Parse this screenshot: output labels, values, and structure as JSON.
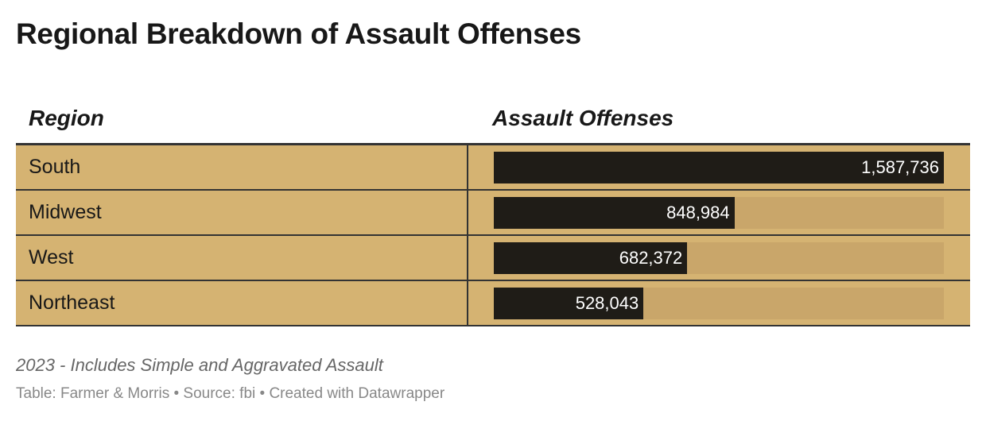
{
  "title": "Regional Breakdown of Assault Offenses",
  "chart_data": {
    "type": "table",
    "columns": [
      "Region",
      "Assault Offenses"
    ],
    "rows": [
      {
        "region": "South",
        "value": 1587736,
        "label": "1,587,736"
      },
      {
        "region": "Midwest",
        "value": 848984,
        "label": "848,984"
      },
      {
        "region": "West",
        "value": 682372,
        "label": "682,372"
      },
      {
        "region": "Northeast",
        "value": 528043,
        "label": "528,043"
      }
    ],
    "bar_max": 1587736,
    "colors": {
      "background": "#d5b372",
      "bar": "#1f1c17",
      "track": "#c9a66a"
    }
  },
  "notes": "2023 - Includes Simple and Aggravated Assault",
  "source": "Table: Farmer & Morris • Source: fbi • Created with Datawrapper"
}
